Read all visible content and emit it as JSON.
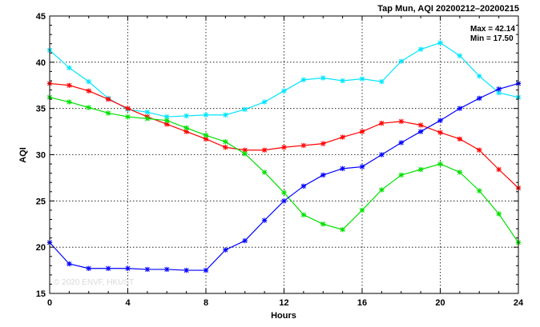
{
  "chart_data": {
    "type": "line",
    "title": "Tap Mun, AQI 20200212–20200215",
    "xlabel": "Hours",
    "ylabel": "AQI",
    "xlim": [
      0,
      24
    ],
    "ylim": [
      15,
      45
    ],
    "xticks": [
      0,
      4,
      8,
      12,
      16,
      20,
      24
    ],
    "yticks": [
      15,
      20,
      25,
      30,
      35,
      40,
      45
    ],
    "grid": true,
    "stats": {
      "max": "Max = 42.14",
      "min": "Min = 17.50"
    },
    "watermark": "© 2020 ENVF, HKUST",
    "x": [
      0,
      1,
      2,
      3,
      4,
      5,
      6,
      7,
      8,
      9,
      10,
      11,
      12,
      13,
      14,
      15,
      16,
      17,
      18,
      19,
      20,
      21,
      22,
      23,
      24
    ],
    "series": [
      {
        "color": "#00e5ff",
        "values": [
          41.3,
          39.4,
          37.9,
          36.1,
          34.9,
          34.6,
          34.1,
          34.2,
          34.3,
          34.3,
          34.9,
          35.7,
          36.9,
          38.1,
          38.3,
          38.0,
          38.2,
          37.9,
          40.1,
          41.4,
          42.1,
          40.7,
          38.5,
          36.7,
          36.2
        ]
      },
      {
        "color": "#ff0000",
        "values": [
          37.7,
          37.5,
          36.9,
          36.0,
          35.0,
          34.1,
          33.3,
          32.5,
          31.7,
          30.8,
          30.5,
          30.5,
          30.8,
          31.0,
          31.2,
          31.9,
          32.5,
          33.4,
          33.6,
          33.2,
          32.4,
          31.7,
          30.5,
          28.4,
          26.4
        ]
      },
      {
        "color": "#00e000",
        "values": [
          36.2,
          35.7,
          35.1,
          34.5,
          34.1,
          33.9,
          33.7,
          32.9,
          32.1,
          31.4,
          30.1,
          28.1,
          25.9,
          23.5,
          22.5,
          21.9,
          24.0,
          26.2,
          27.8,
          28.4,
          29.0,
          28.1,
          26.1,
          23.6,
          20.5
        ]
      },
      {
        "color": "#0000ff",
        "values": [
          20.5,
          18.2,
          17.7,
          17.7,
          17.7,
          17.6,
          17.6,
          17.5,
          17.5,
          19.7,
          20.7,
          22.9,
          25.0,
          26.6,
          27.8,
          28.5,
          28.7,
          30.0,
          31.3,
          32.5,
          33.7,
          35.0,
          36.1,
          37.1,
          37.7
        ]
      }
    ]
  }
}
